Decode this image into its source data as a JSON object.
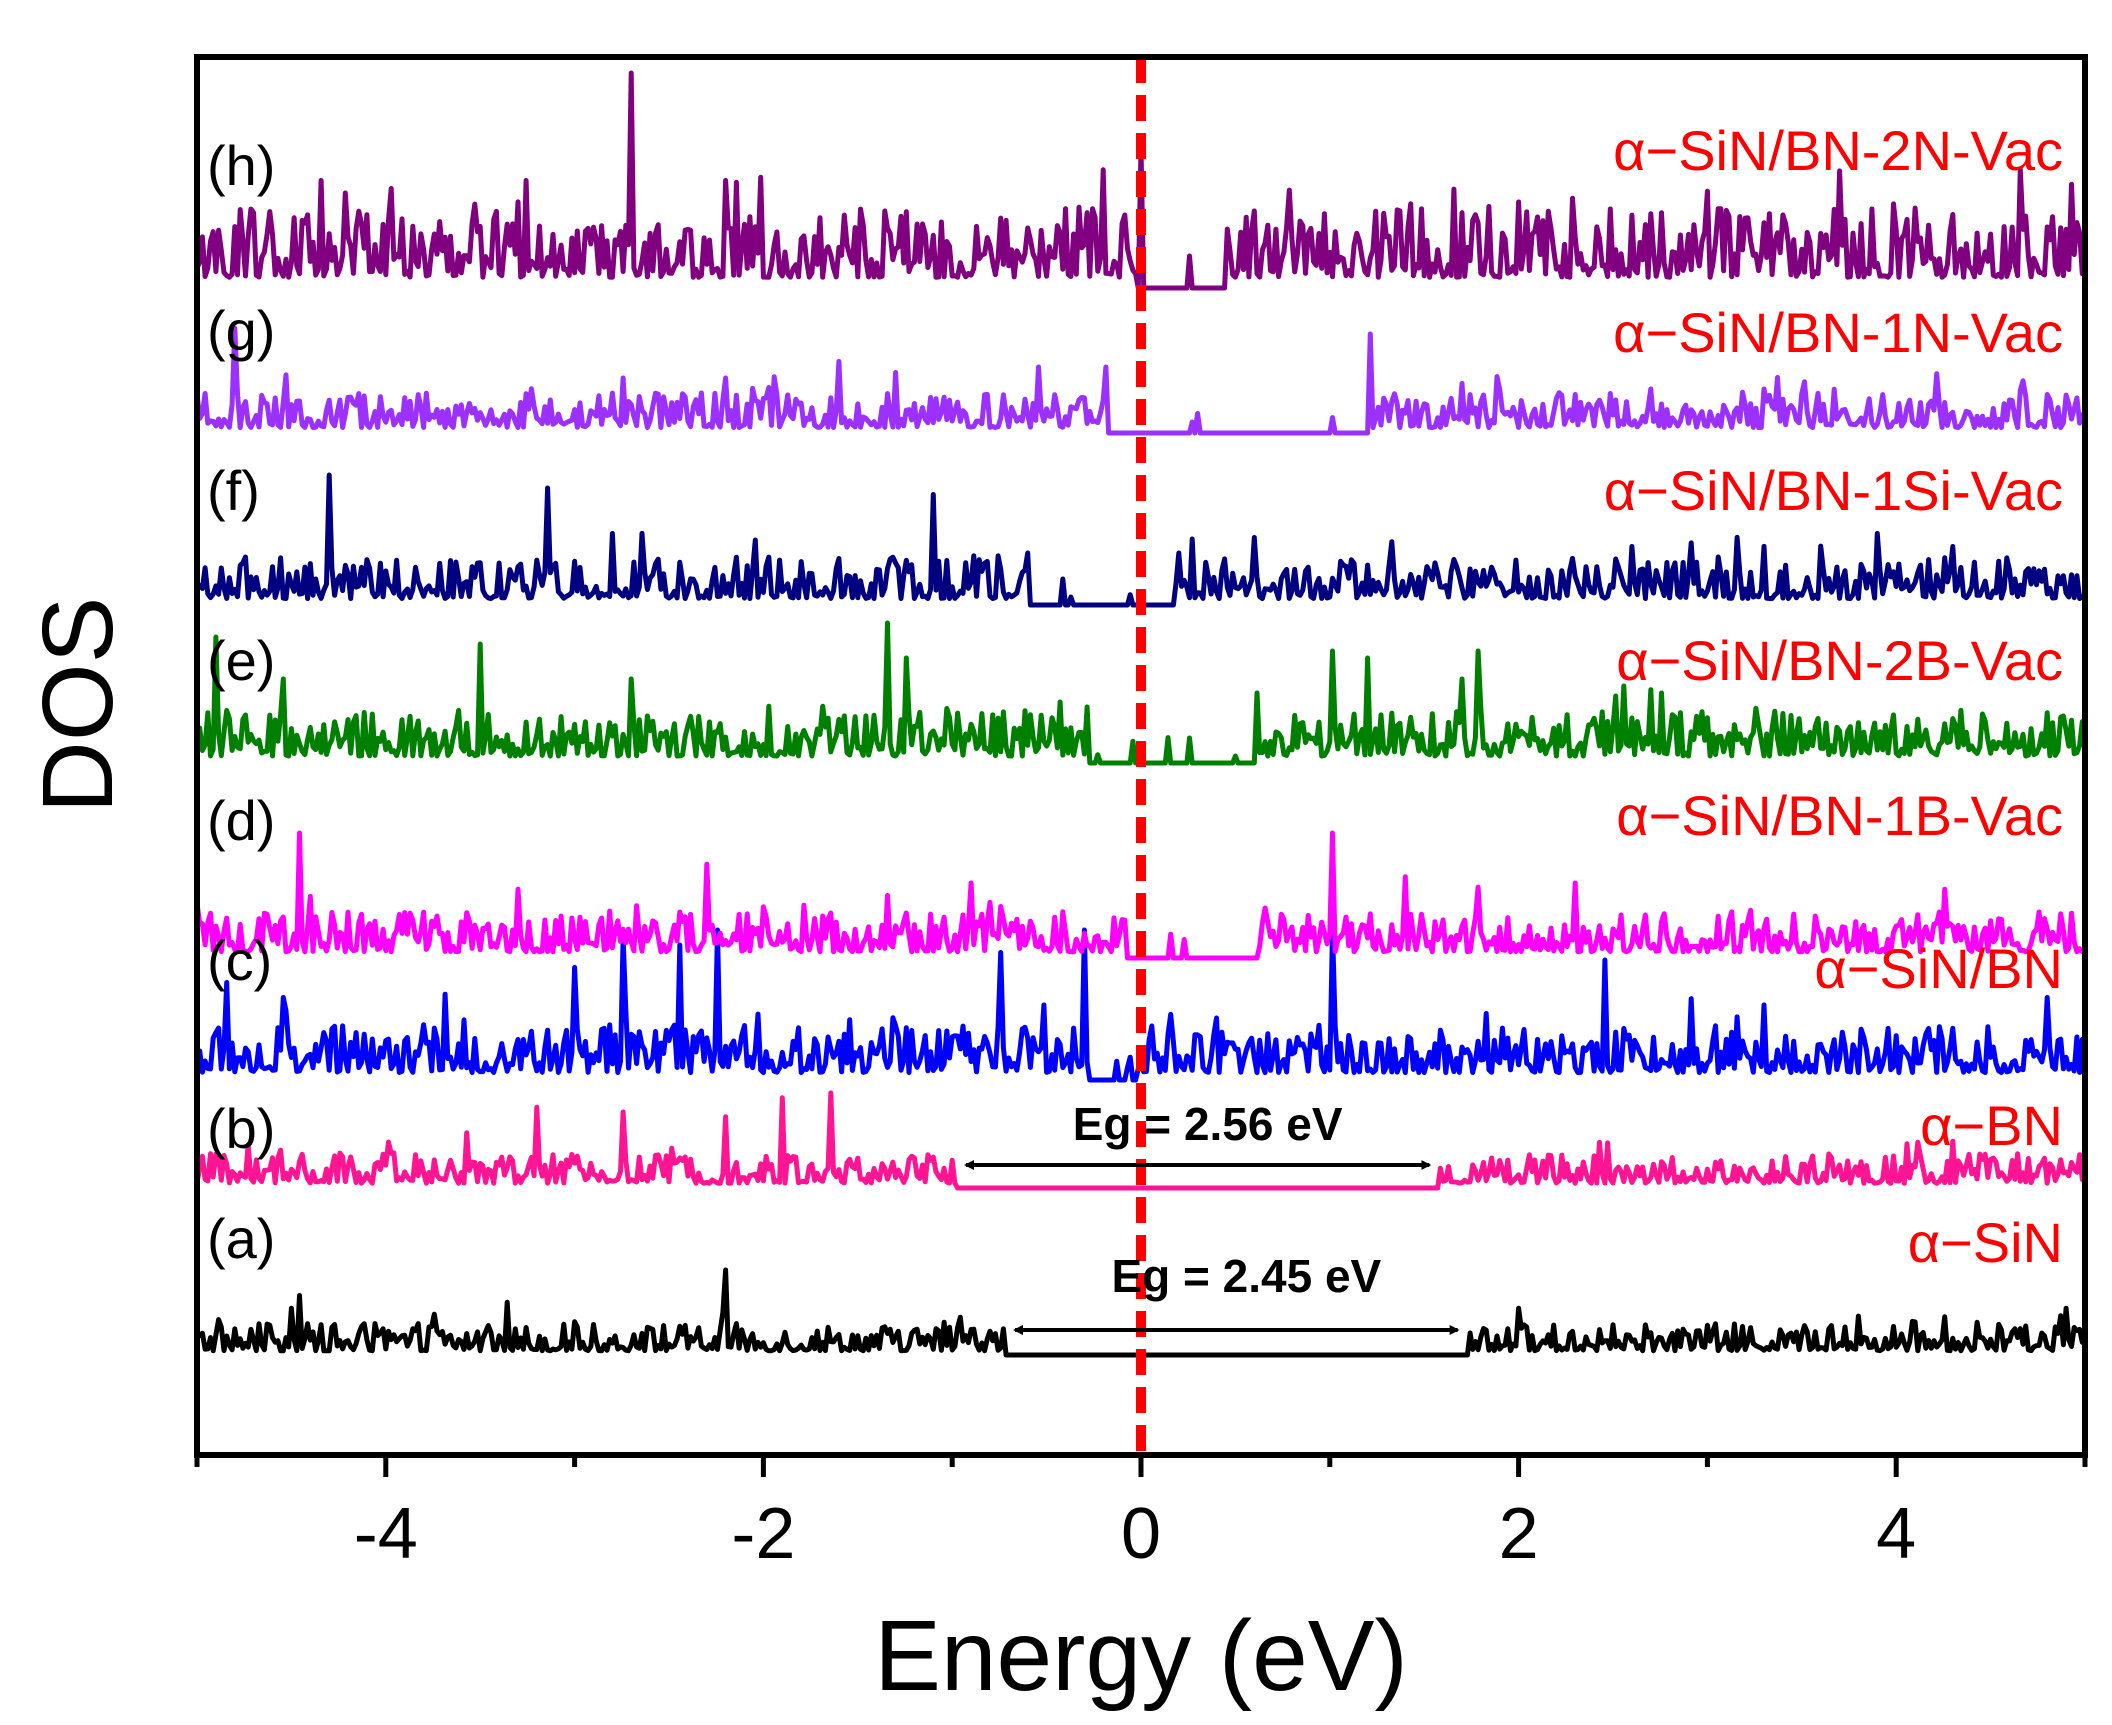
{
  "chart_data": {
    "type": "line",
    "xlabel": "Energy (eV)",
    "ylabel": "DOS",
    "xlim": [
      -5,
      5
    ],
    "xticks": [
      -4,
      -2,
      0,
      2,
      4
    ],
    "fermi_level": 0,
    "series": [
      {
        "panel": "(a)",
        "name": "α−SiN",
        "color": "#000000",
        "gap": {
          "vbm": -0.72,
          "cbm": 1.73
        },
        "peaks": [
          [
            -4.5,
            0.55
          ],
          [
            -4.45,
            0.7
          ],
          [
            -3.75,
            0.48
          ],
          [
            -3.35,
            0.62
          ],
          [
            -2.2,
            1.0
          ],
          [
            -0.9,
            0.3
          ],
          [
            2.0,
            0.55
          ],
          [
            3.0,
            0.35
          ],
          [
            4.25,
            0.45
          ],
          [
            4.9,
            0.55
          ]
        ]
      },
      {
        "panel": "(b)",
        "name": "α−BN",
        "color": "#ff1493",
        "gap": {
          "vbm": -0.98,
          "cbm": 1.58
        },
        "peaks": [
          [
            -3.2,
            0.85
          ],
          [
            -2.75,
            0.8
          ],
          [
            -2.2,
            0.75
          ],
          [
            -1.9,
            0.95
          ],
          [
            -1.65,
            1.0
          ],
          [
            2.05,
            0.35
          ],
          [
            3.5,
            0.25
          ],
          [
            4.5,
            0.3
          ]
        ]
      },
      {
        "panel": "(c)",
        "name": "α−SiN/BN",
        "color": "#0000ff",
        "gap": {
          "vbm": -0.3,
          "cbm": 0.0
        },
        "peaks": [
          [
            -4.85,
            0.65
          ],
          [
            -4.55,
            0.55
          ],
          [
            -3.0,
            0.75
          ],
          [
            -2.75,
            0.95
          ],
          [
            -2.45,
            0.9
          ],
          [
            -2.25,
            1.0
          ],
          [
            -0.75,
            0.85
          ],
          [
            -0.52,
            0.5
          ],
          [
            -0.3,
            1.0
          ],
          [
            1.02,
            1.0
          ],
          [
            2.45,
            0.8
          ],
          [
            3.3,
            0.5
          ],
          [
            4.8,
            0.55
          ]
        ]
      },
      {
        "panel": "(d)",
        "name": "α−SiN/BN-1B-Vac",
        "color": "#ff00ff",
        "gap": {
          "vbm": -0.08,
          "cbm": 0.62
        },
        "peaks": [
          [
            -4.45,
            1.0
          ],
          [
            -3.3,
            0.55
          ],
          [
            -2.3,
            0.75
          ],
          [
            -1.35,
            0.5
          ],
          [
            -0.9,
            0.6
          ],
          [
            0.65,
            0.4
          ],
          [
            1.02,
            1.0
          ],
          [
            1.4,
            0.65
          ],
          [
            2.3,
            0.6
          ],
          [
            4.25,
            0.55
          ]
        ]
      },
      {
        "panel": "(e)",
        "name": "α−SiN/BN-2B-Vac",
        "color": "#008000",
        "gap": {
          "vbm": -0.28,
          "cbm": 0.62
        },
        "peaks": [
          [
            -4.9,
            0.9
          ],
          [
            -4.55,
            0.6
          ],
          [
            -3.5,
            0.85
          ],
          [
            -2.7,
            0.6
          ],
          [
            -1.35,
            1.0
          ],
          [
            -1.25,
            0.75
          ],
          [
            -0.28,
            0.4
          ],
          [
            0.62,
            0.5
          ],
          [
            1.02,
            0.8
          ],
          [
            1.2,
            0.75
          ],
          [
            1.7,
            0.6
          ],
          [
            1.78,
            0.8
          ],
          [
            2.55,
            0.55
          ],
          [
            2.75,
            0.5
          ],
          [
            4.45,
            0.35
          ]
        ]
      },
      {
        "panel": "(f)",
        "name": "α−SiN/BN-1Si-Vac",
        "color": "#000080",
        "gap": {
          "vbm": -0.6,
          "cbm": 0.18
        },
        "peaks": [
          [
            -4.3,
            1.0
          ],
          [
            -3.15,
            0.9
          ],
          [
            -2.8,
            0.55
          ],
          [
            -2.05,
            0.5
          ],
          [
            -1.1,
            0.85
          ],
          [
            -0.6,
            0.4
          ],
          [
            0.2,
            0.4
          ],
          [
            1.65,
            0.35
          ],
          [
            2.6,
            0.45
          ],
          [
            3.9,
            0.55
          ],
          [
            4.3,
            0.45
          ]
        ]
      },
      {
        "panel": "(g)",
        "name": "α−SiN/BN-1N-Vac",
        "color": "#9b30ff",
        "gap": {
          "vbm": -0.18,
          "cbm": 1.22
        },
        "peaks": [
          [
            -4.8,
            0.95
          ],
          [
            -2.75,
            0.5
          ],
          [
            -2.2,
            0.5
          ],
          [
            -1.6,
            0.65
          ],
          [
            -1.3,
            0.55
          ],
          [
            -0.55,
            0.6
          ],
          [
            -0.18,
            0.6
          ],
          [
            1.22,
            0.9
          ],
          [
            1.7,
            0.45
          ],
          [
            2.3,
            0.35
          ],
          [
            2.7,
            0.4
          ],
          [
            3.3,
            0.4
          ]
        ]
      },
      {
        "panel": "(h)",
        "name": "α−SiN/BN-2N-Vac",
        "color": "#800080",
        "gap": {
          "vbm": -0.02,
          "cbm": 0.45
        },
        "peaks": [
          [
            -4.35,
            0.5
          ],
          [
            -3.25,
            0.5
          ],
          [
            -2.7,
            1.0
          ],
          [
            -2.2,
            0.5
          ],
          [
            -0.2,
            0.55
          ],
          [
            0.0,
            0.65
          ],
          [
            1.7,
            0.35
          ],
          [
            2.0,
            0.4
          ],
          [
            3.0,
            0.45
          ],
          [
            4.65,
            0.55
          ]
        ]
      }
    ],
    "annotations": [
      {
        "text": "Eg = 2.56 eV",
        "series_panel": "(b)",
        "from": -0.98,
        "to": 1.58
      },
      {
        "text": "Eg = 2.45 eV",
        "series_panel": "(a)",
        "from": -0.72,
        "to": 1.73
      }
    ]
  }
}
